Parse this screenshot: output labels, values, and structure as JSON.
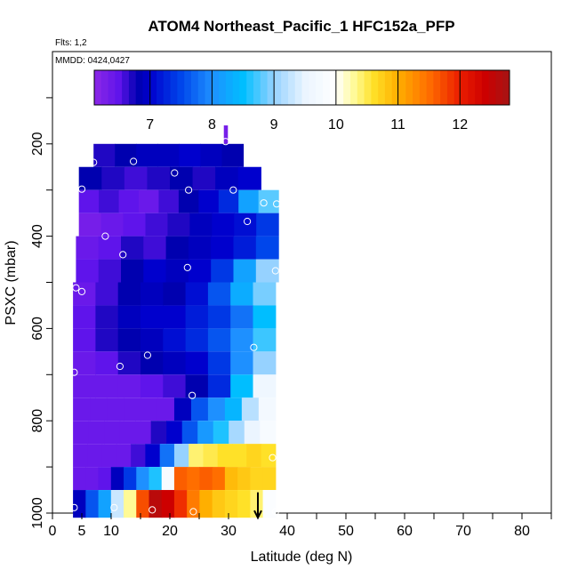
{
  "chart_data": {
    "type": "heatmap",
    "title": "ATOM4 Northeast_Pacific_1 HFC152a_PFP",
    "flights_label": "Flts: 1,2",
    "mmdd_label": "MMDD: 0424,0427",
    "xlabel": "Latitude (deg N)",
    "ylabel": "PSXC (mbar)",
    "xlim": [
      0,
      85
    ],
    "ylim": [
      1000,
      0
    ],
    "x_ticks": [
      "0",
      "5",
      "10",
      "20",
      "30",
      "40",
      "50",
      "60",
      "70",
      "80"
    ],
    "y_ticks": [
      "200",
      "400",
      "600",
      "800",
      "1000"
    ],
    "colorbar": {
      "range": [
        6.1,
        12.8
      ],
      "ticks": [
        "7",
        "8",
        "9",
        "10",
        "11",
        "12"
      ]
    },
    "rows": [
      {
        "p0": 160,
        "p1": 200,
        "lat0": 29.2,
        "lat1": 29.8,
        "vals": [
          6.3
        ]
      },
      {
        "p0": 200,
        "p1": 250,
        "lat0": 7,
        "lat1": 32.5,
        "vals": [
          6.7,
          6.8,
          6.9,
          6.9,
          7.0,
          6.9,
          6.8
        ]
      },
      {
        "p0": 250,
        "p1": 300,
        "lat0": 4.5,
        "lat1": 35.5,
        "vals": [
          6.8,
          6.7,
          6.6,
          6.7,
          6.8,
          6.7,
          6.9,
          7.0
        ]
      },
      {
        "p0": 300,
        "p1": 350,
        "lat0": 4.5,
        "lat1": 38.5,
        "vals": [
          6.5,
          6.6,
          6.5,
          6.4,
          6.6,
          6.8,
          7.0,
          7.3,
          8.2,
          8.8
        ]
      },
      {
        "p0": 350,
        "p1": 400,
        "lat0": 4.5,
        "lat1": 38.5,
        "vals": [
          6.3,
          6.4,
          6.5,
          6.6,
          6.7,
          6.9,
          7.0,
          7.1,
          7.4
        ]
      },
      {
        "p0": 400,
        "p1": 450,
        "lat0": 4,
        "lat1": 38.5,
        "vals": [
          6.4,
          6.5,
          6.7,
          6.6,
          6.8,
          6.9,
          7.0,
          7.2,
          7.5
        ]
      },
      {
        "p0": 450,
        "p1": 500,
        "lat0": 4,
        "lat1": 38.5,
        "vals": [
          6.5,
          6.6,
          6.8,
          7.0,
          6.9,
          7.0,
          7.4,
          8.2,
          9.0
        ]
      },
      {
        "p0": 500,
        "p1": 550,
        "lat0": 3.5,
        "lat1": 38,
        "vals": [
          6.4,
          6.6,
          6.8,
          6.9,
          6.8,
          7.1,
          7.6,
          8.3,
          8.9
        ]
      },
      {
        "p0": 550,
        "p1": 600,
        "lat0": 3.5,
        "lat1": 38,
        "vals": [
          6.5,
          6.7,
          6.9,
          7.0,
          7.0,
          7.2,
          7.4,
          7.8,
          8.5
        ]
      },
      {
        "p0": 600,
        "p1": 650,
        "lat0": 3.5,
        "lat1": 38,
        "vals": [
          6.5,
          6.7,
          6.8,
          6.9,
          7.1,
          7.3,
          7.6,
          8.0,
          8.7
        ]
      },
      {
        "p0": 650,
        "p1": 700,
        "lat0": 3.5,
        "lat1": 38,
        "vals": [
          6.4,
          6.5,
          6.7,
          6.8,
          6.9,
          7.0,
          7.4,
          8.0,
          9.0
        ]
      },
      {
        "p0": 700,
        "p1": 750,
        "lat0": 3.5,
        "lat1": 38,
        "vals": [
          6.4,
          6.4,
          6.4,
          6.5,
          6.6,
          6.8,
          7.3,
          8.5,
          9.6
        ]
      },
      {
        "p0": 750,
        "p1": 800,
        "lat0": 3.5,
        "lat1": 38,
        "vals": [
          6.4,
          6.4,
          6.4,
          6.4,
          6.4,
          6.4,
          6.9,
          7.6,
          8.0,
          8.4,
          9.2,
          9.7
        ]
      },
      {
        "p0": 800,
        "p1": 850,
        "lat0": 3.5,
        "lat1": 38,
        "vals": [
          6.4,
          6.4,
          6.4,
          6.4,
          6.4,
          6.7,
          7.0,
          7.6,
          8.1,
          8.6,
          9.1,
          9.5,
          9.8
        ]
      },
      {
        "p0": 850,
        "p1": 900,
        "lat0": 3.5,
        "lat1": 38,
        "vals": [
          6.4,
          6.4,
          6.4,
          6.4,
          6.6,
          7.0,
          7.8,
          9.0,
          10.4,
          10.5,
          10.6,
          10.6,
          10.7,
          10.6
        ]
      },
      {
        "p0": 900,
        "p1": 950,
        "lat0": 3.5,
        "lat1": 38,
        "vals": [
          6.4,
          6.4,
          6.5,
          6.9,
          7.4,
          8.0,
          8.6,
          9.8,
          11.6,
          11.5,
          11.6,
          11.5,
          10.9,
          10.8,
          10.7,
          10.7
        ]
      },
      {
        "p0": 950,
        "p1": 1010,
        "lat0": 3.5,
        "lat1": 38,
        "vals": [
          6.9,
          7.6,
          8.2,
          9.3,
          10.3,
          11.7,
          12.6,
          12.4,
          11.9,
          11.4,
          11.0,
          10.8,
          10.7,
          10.6,
          10.4,
          9.9
        ]
      }
    ],
    "samples": [
      {
        "lat": 29.5,
        "p": 195
      },
      {
        "lat": 7.0,
        "p": 240
      },
      {
        "lat": 13.8,
        "p": 238
      },
      {
        "lat": 20.8,
        "p": 263
      },
      {
        "lat": 5.0,
        "p": 298
      },
      {
        "lat": 23.2,
        "p": 300
      },
      {
        "lat": 30.8,
        "p": 300
      },
      {
        "lat": 36.0,
        "p": 328
      },
      {
        "lat": 38.2,
        "p": 330
      },
      {
        "lat": 33.2,
        "p": 368
      },
      {
        "lat": 9.0,
        "p": 400
      },
      {
        "lat": 12.0,
        "p": 440
      },
      {
        "lat": 23.0,
        "p": 468
      },
      {
        "lat": 38.0,
        "p": 475
      },
      {
        "lat": 4.0,
        "p": 512
      },
      {
        "lat": 5.0,
        "p": 520
      },
      {
        "lat": 34.3,
        "p": 641
      },
      {
        "lat": 16.2,
        "p": 658
      },
      {
        "lat": 11.5,
        "p": 682
      },
      {
        "lat": 3.7,
        "p": 695
      },
      {
        "lat": 23.8,
        "p": 745
      },
      {
        "lat": 37.5,
        "p": 880
      },
      {
        "lat": 3.7,
        "p": 988
      },
      {
        "lat": 10.5,
        "p": 988
      },
      {
        "lat": 17.0,
        "p": 993
      },
      {
        "lat": 24.0,
        "p": 997
      },
      {
        "lat": 38.0,
        "p": 997
      }
    ],
    "arrow": {
      "lat": 35.0,
      "p_from": 955,
      "p_to": 1010
    }
  }
}
